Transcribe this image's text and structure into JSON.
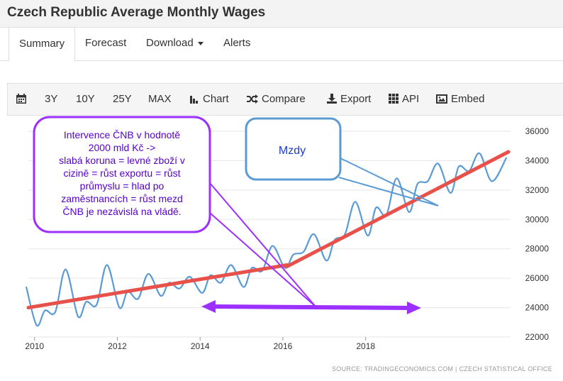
{
  "header": {
    "title": "Czech Republic Average Monthly Wages"
  },
  "tabs": [
    {
      "label": "Summary",
      "active": true
    },
    {
      "label": "Forecast"
    },
    {
      "label": "Download",
      "dropdown": true
    },
    {
      "label": "Alerts"
    }
  ],
  "toolbar": {
    "calendar_icon": "calendar-icon",
    "ranges": [
      "3Y",
      "10Y",
      "25Y",
      "MAX"
    ],
    "chart_label": "Chart",
    "compare_label": "Compare",
    "export_label": "Export",
    "api_label": "API",
    "embed_label": "Embed"
  },
  "source": "SOURCE: TRADINGECONOMICS.COM  |  CZECH STATISTICAL OFFICE",
  "annotations": {
    "purple_callout_lines": [
      "Intervence ČNB v hodnotě",
      "2000 mld Kč ->",
      "slabá koruna = levné zboží v",
      "cizině = růst exportu = růst",
      "průmyslu = hlad po",
      "zaměstnancích = růst mezd",
      "ČNB je nezávislá na vládě."
    ],
    "blue_callout": "Mzdy"
  },
  "colors": {
    "series": "#5b9bd5",
    "trend": "#e8504a",
    "purple": "#9b30ff",
    "blue_text": "#1a3ccc"
  },
  "chart_data": {
    "type": "line",
    "xlabel": "",
    "ylabel": "",
    "x_ticks": [
      2010,
      2012,
      2014,
      2016,
      2018
    ],
    "y_ticks": [
      22000,
      24000,
      26000,
      28000,
      30000,
      32000,
      34000,
      36000
    ],
    "xlim": [
      2009.85,
      2021.5
    ],
    "ylim": [
      22000,
      36000
    ],
    "grid": "horizontal",
    "series": [
      {
        "type": "quarterly",
        "x": [
          2009.8,
          2010.05,
          2010.25,
          2010.5,
          2010.75,
          2011.05,
          2011.25,
          2011.5,
          2011.75,
          2012.05,
          2012.25,
          2012.5,
          2012.75,
          2013.05,
          2013.25,
          2013.5,
          2013.75,
          2014.05,
          2014.25,
          2014.5,
          2014.75,
          2015.05,
          2015.25,
          2015.5,
          2015.75,
          2016.05,
          2016.25,
          2016.5,
          2016.75,
          2017.05,
          2017.25,
          2017.5,
          2017.75,
          2018.05,
          2018.25,
          2018.5,
          2018.75,
          2019.05,
          2019.25,
          2019.5,
          2019.75,
          2020.05,
          2020.25,
          2020.5,
          2020.75,
          2021.05,
          2021.4
        ],
        "values": [
          25400,
          22800,
          23800,
          23700,
          26600,
          23400,
          24400,
          24200,
          26900,
          24000,
          25100,
          24600,
          26300,
          24800,
          25700,
          25300,
          26100,
          25000,
          26200,
          25700,
          26900,
          25400,
          26700,
          26500,
          28200,
          26700,
          27600,
          27800,
          29000,
          27200,
          28600,
          29000,
          31200,
          28900,
          30800,
          30300,
          32800,
          30500,
          32400,
          32600,
          33800,
          31800,
          33600,
          33300,
          34500,
          32600,
          34200
        ]
      },
      {
        "type": "trend_before",
        "x": [
          2009.85,
          2016.1
        ],
        "values": [
          24000,
          26900
        ]
      },
      {
        "type": "trend_after",
        "x": [
          2016.1,
          2021.45
        ],
        "values": [
          26800,
          34600
        ]
      }
    ]
  }
}
